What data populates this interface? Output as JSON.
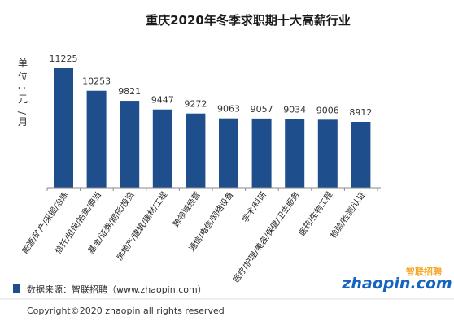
{
  "chart_data": {
    "type": "bar",
    "title": "重庆2020年冬季求职期十大高薪行业",
    "ylabel": "单位：元/月",
    "categories": [
      "能源/矿产/采掘/冶炼",
      "信托/担保/拍卖/典当",
      "基金/证券/期货/投资",
      "房地产/建筑/建材/工程",
      "跨领域经营",
      "通信/电信/网络设备",
      "学术/科研",
      "医疗/护理/美容/保健/卫生服务",
      "医药/生物工程",
      "检验/检测/认证"
    ],
    "values": [
      11225,
      10253,
      9821,
      9447,
      9272,
      9063,
      9057,
      9034,
      9006,
      8912
    ],
    "ylim": [
      0,
      11225
    ],
    "grid": false,
    "color": "#1f4e8c"
  },
  "legend": {
    "source_label": "数据来源：智联招聘（www.zhaopin.com）",
    "color": "#1f4e8c"
  },
  "logo": {
    "brand": "智联招聘",
    "wordmark": "zhaopin.com",
    "colors": {
      "blue": "#1565c0",
      "orange": "#f5a623"
    }
  },
  "footer": {
    "copyright": "Copyright©2020 zhaopin all rights reserved"
  }
}
